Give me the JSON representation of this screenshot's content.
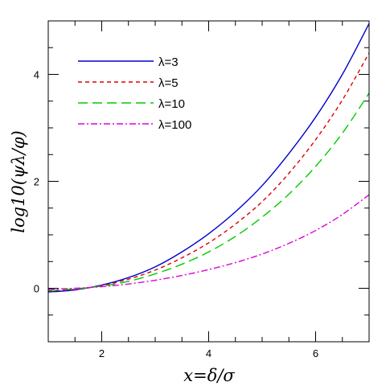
{
  "chart_data": {
    "type": "line",
    "xlabel": "x=δ/σ",
    "ylabel": "log10(ψλ/φ)",
    "xlim": [
      1,
      7
    ],
    "ylim": [
      -1,
      5
    ],
    "x_ticks": [
      2,
      4,
      6
    ],
    "y_ticks": [
      0,
      2,
      4
    ],
    "x_minor_step": 0.5,
    "y_minor_step": 0.5,
    "grid": false,
    "legend_position": "top-left",
    "series": [
      {
        "name": "λ=3",
        "color": "#0000cc",
        "dash": "solid",
        "x": [
          1.0,
          1.5,
          2.0,
          2.5,
          3.0,
          3.5,
          4.0,
          4.5,
          5.0,
          5.5,
          6.0,
          6.5,
          7.0
        ],
        "y": [
          -0.07,
          -0.03,
          0.06,
          0.2,
          0.4,
          0.68,
          1.02,
          1.43,
          1.92,
          2.52,
          3.2,
          4.0,
          4.95
        ]
      },
      {
        "name": "λ=5",
        "color": "#dd0000",
        "dash": "short",
        "x": [
          1.0,
          1.5,
          2.0,
          2.5,
          3.0,
          3.5,
          4.0,
          4.5,
          5.0,
          5.5,
          6.0,
          6.5,
          7.0
        ],
        "y": [
          -0.05,
          -0.02,
          0.05,
          0.17,
          0.34,
          0.57,
          0.85,
          1.2,
          1.62,
          2.15,
          2.78,
          3.52,
          4.4
        ]
      },
      {
        "name": "λ=10",
        "color": "#00cc00",
        "dash": "long",
        "x": [
          1.0,
          1.5,
          2.0,
          2.5,
          3.0,
          3.5,
          4.0,
          4.5,
          5.0,
          5.5,
          6.0,
          6.5,
          7.0
        ],
        "y": [
          -0.04,
          -0.01,
          0.04,
          0.13,
          0.27,
          0.45,
          0.68,
          0.97,
          1.33,
          1.76,
          2.28,
          2.9,
          3.65
        ]
      },
      {
        "name": "λ=100",
        "color": "#dd00dd",
        "dash": "dashdot",
        "x": [
          1.0,
          1.5,
          2.0,
          2.5,
          3.0,
          3.5,
          4.0,
          4.5,
          5.0,
          5.5,
          6.0,
          6.5,
          7.0
        ],
        "y": [
          -0.02,
          0.0,
          0.03,
          0.08,
          0.15,
          0.24,
          0.35,
          0.48,
          0.64,
          0.84,
          1.08,
          1.38,
          1.75
        ]
      }
    ]
  }
}
